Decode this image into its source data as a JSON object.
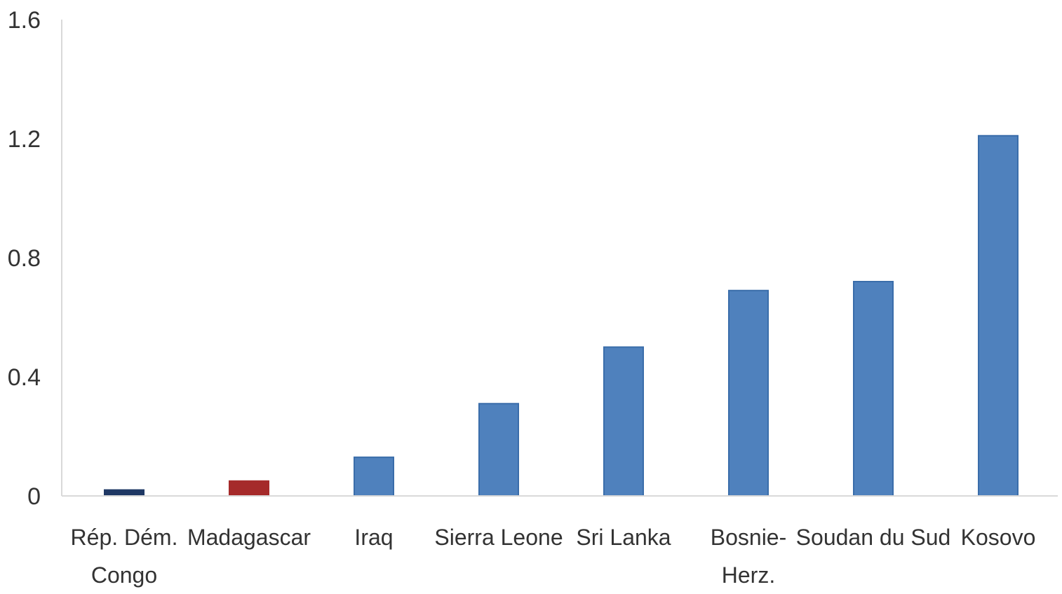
{
  "chart_data": {
    "type": "bar",
    "title": "",
    "xlabel": "",
    "ylabel": "",
    "categories": [
      [
        "Rép. Dém.",
        "Congo"
      ],
      [
        "Madagascar"
      ],
      [
        "Iraq"
      ],
      [
        "Sierra Leone"
      ],
      [
        "Sri Lanka"
      ],
      [
        "Bosnie-",
        "Herz."
      ],
      [
        "Soudan du Sud"
      ],
      [
        "Kosovo"
      ]
    ],
    "values": [
      0.02,
      0.05,
      0.13,
      0.31,
      0.5,
      0.69,
      0.72,
      1.21
    ],
    "bar_colors": [
      "#1F3864",
      "#A52A2A",
      "#4F81BD",
      "#4F81BD",
      "#4F81BD",
      "#4F81BD",
      "#4F81BD",
      "#4F81BD"
    ],
    "ylim": [
      0,
      1.6
    ],
    "yticks": [
      "0",
      "0.4",
      "0.8",
      "1.2",
      "1.6"
    ],
    "grid": false,
    "legend": "none",
    "colors": {
      "axis": "#D9D9D9",
      "text": "#333333",
      "bar_border": "#3A6DAA"
    }
  }
}
